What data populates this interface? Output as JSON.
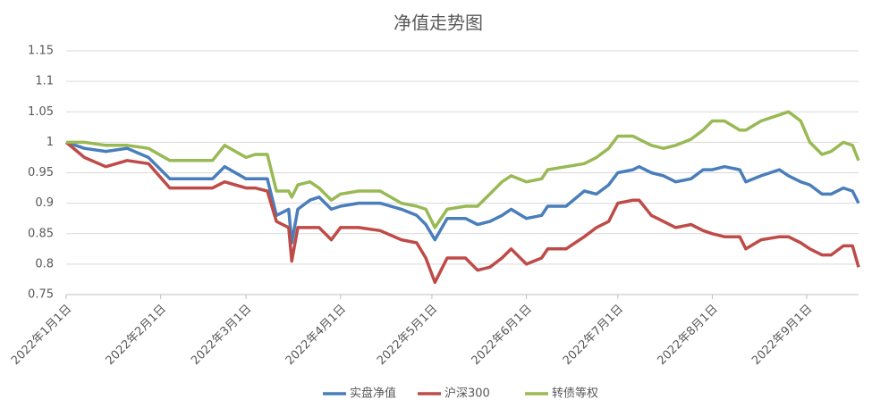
{
  "chart_data": {
    "type": "line",
    "title": "净值走势图",
    "x": [
      "2022-01-01",
      "2022-01-07",
      "2022-01-14",
      "2022-01-21",
      "2022-01-28",
      "2022-02-04",
      "2022-02-11",
      "2022-02-18",
      "2022-02-22",
      "2022-03-01",
      "2022-03-04",
      "2022-03-08",
      "2022-03-11",
      "2022-03-15",
      "2022-03-16",
      "2022-03-18",
      "2022-03-22",
      "2022-03-25",
      "2022-03-29",
      "2022-04-01",
      "2022-04-07",
      "2022-04-14",
      "2022-04-21",
      "2022-04-26",
      "2022-04-29",
      "2022-05-02",
      "2022-05-06",
      "2022-05-12",
      "2022-05-16",
      "2022-05-20",
      "2022-05-24",
      "2022-05-27",
      "2022-06-01",
      "2022-06-06",
      "2022-06-08",
      "2022-06-14",
      "2022-06-20",
      "2022-06-24",
      "2022-06-28",
      "2022-07-01",
      "2022-07-06",
      "2022-07-08",
      "2022-07-12",
      "2022-07-16",
      "2022-07-20",
      "2022-07-25",
      "2022-07-29",
      "2022-08-01",
      "2022-08-05",
      "2022-08-10",
      "2022-08-12",
      "2022-08-17",
      "2022-08-23",
      "2022-08-26",
      "2022-08-30",
      "2022-09-02",
      "2022-09-06",
      "2022-09-09",
      "2022-09-13",
      "2022-09-16",
      "2022-09-18"
    ],
    "series": [
      {
        "name": "实盘净值",
        "color": "#4a7ebb",
        "values": [
          1.0,
          0.99,
          0.985,
          0.99,
          0.975,
          0.94,
          0.94,
          0.94,
          0.96,
          0.94,
          0.94,
          0.94,
          0.88,
          0.89,
          0.835,
          0.89,
          0.905,
          0.91,
          0.89,
          0.895,
          0.9,
          0.9,
          0.89,
          0.88,
          0.865,
          0.84,
          0.875,
          0.875,
          0.865,
          0.87,
          0.88,
          0.89,
          0.875,
          0.88,
          0.895,
          0.895,
          0.92,
          0.915,
          0.93,
          0.95,
          0.955,
          0.96,
          0.95,
          0.945,
          0.935,
          0.94,
          0.955,
          0.955,
          0.96,
          0.955,
          0.935,
          0.945,
          0.955,
          0.945,
          0.935,
          0.93,
          0.915,
          0.915,
          0.925,
          0.92,
          0.9
        ]
      },
      {
        "name": "沪深300",
        "color": "#be4b48",
        "values": [
          1.0,
          0.975,
          0.96,
          0.97,
          0.965,
          0.925,
          0.925,
          0.925,
          0.935,
          0.925,
          0.925,
          0.92,
          0.87,
          0.86,
          0.805,
          0.86,
          0.86,
          0.86,
          0.84,
          0.86,
          0.86,
          0.855,
          0.84,
          0.835,
          0.81,
          0.77,
          0.81,
          0.81,
          0.79,
          0.795,
          0.81,
          0.825,
          0.8,
          0.81,
          0.825,
          0.825,
          0.845,
          0.86,
          0.87,
          0.9,
          0.905,
          0.905,
          0.88,
          0.87,
          0.86,
          0.865,
          0.855,
          0.85,
          0.845,
          0.845,
          0.825,
          0.84,
          0.845,
          0.845,
          0.835,
          0.825,
          0.815,
          0.815,
          0.83,
          0.83,
          0.795
        ]
      },
      {
        "name": "转债等权",
        "color": "#98b954",
        "values": [
          1.0,
          1.0,
          0.995,
          0.995,
          0.99,
          0.97,
          0.97,
          0.97,
          0.995,
          0.975,
          0.98,
          0.98,
          0.92,
          0.92,
          0.91,
          0.93,
          0.935,
          0.925,
          0.905,
          0.915,
          0.92,
          0.92,
          0.9,
          0.895,
          0.89,
          0.86,
          0.89,
          0.895,
          0.895,
          0.915,
          0.935,
          0.945,
          0.935,
          0.94,
          0.955,
          0.96,
          0.965,
          0.975,
          0.99,
          1.01,
          1.01,
          1.005,
          0.995,
          0.99,
          0.995,
          1.005,
          1.02,
          1.035,
          1.035,
          1.02,
          1.02,
          1.035,
          1.045,
          1.05,
          1.035,
          1.0,
          0.98,
          0.985,
          1.0,
          0.995,
          0.97
        ]
      }
    ],
    "xlim": [
      "2022-01-01",
      "2022-09-18"
    ],
    "xticks": [
      {
        "value": "2022-01-01",
        "label": "2022年1月1日"
      },
      {
        "value": "2022-02-01",
        "label": "2022年2月1日"
      },
      {
        "value": "2022-03-01",
        "label": "2022年3月1日"
      },
      {
        "value": "2022-04-01",
        "label": "2022年4月1日"
      },
      {
        "value": "2022-05-01",
        "label": "2022年5月1日"
      },
      {
        "value": "2022-06-01",
        "label": "2022年6月1日"
      },
      {
        "value": "2022-07-01",
        "label": "2022年7月1日"
      },
      {
        "value": "2022-08-01",
        "label": "2022年8月1日"
      },
      {
        "value": "2022-09-01",
        "label": "2022年9月1日"
      }
    ],
    "ylim": [
      0.75,
      1.15
    ],
    "yticks": [
      0.75,
      0.8,
      0.85,
      0.9,
      0.95,
      1,
      1.05,
      1.1,
      1.15
    ],
    "grid": true,
    "legend": "bottom"
  }
}
